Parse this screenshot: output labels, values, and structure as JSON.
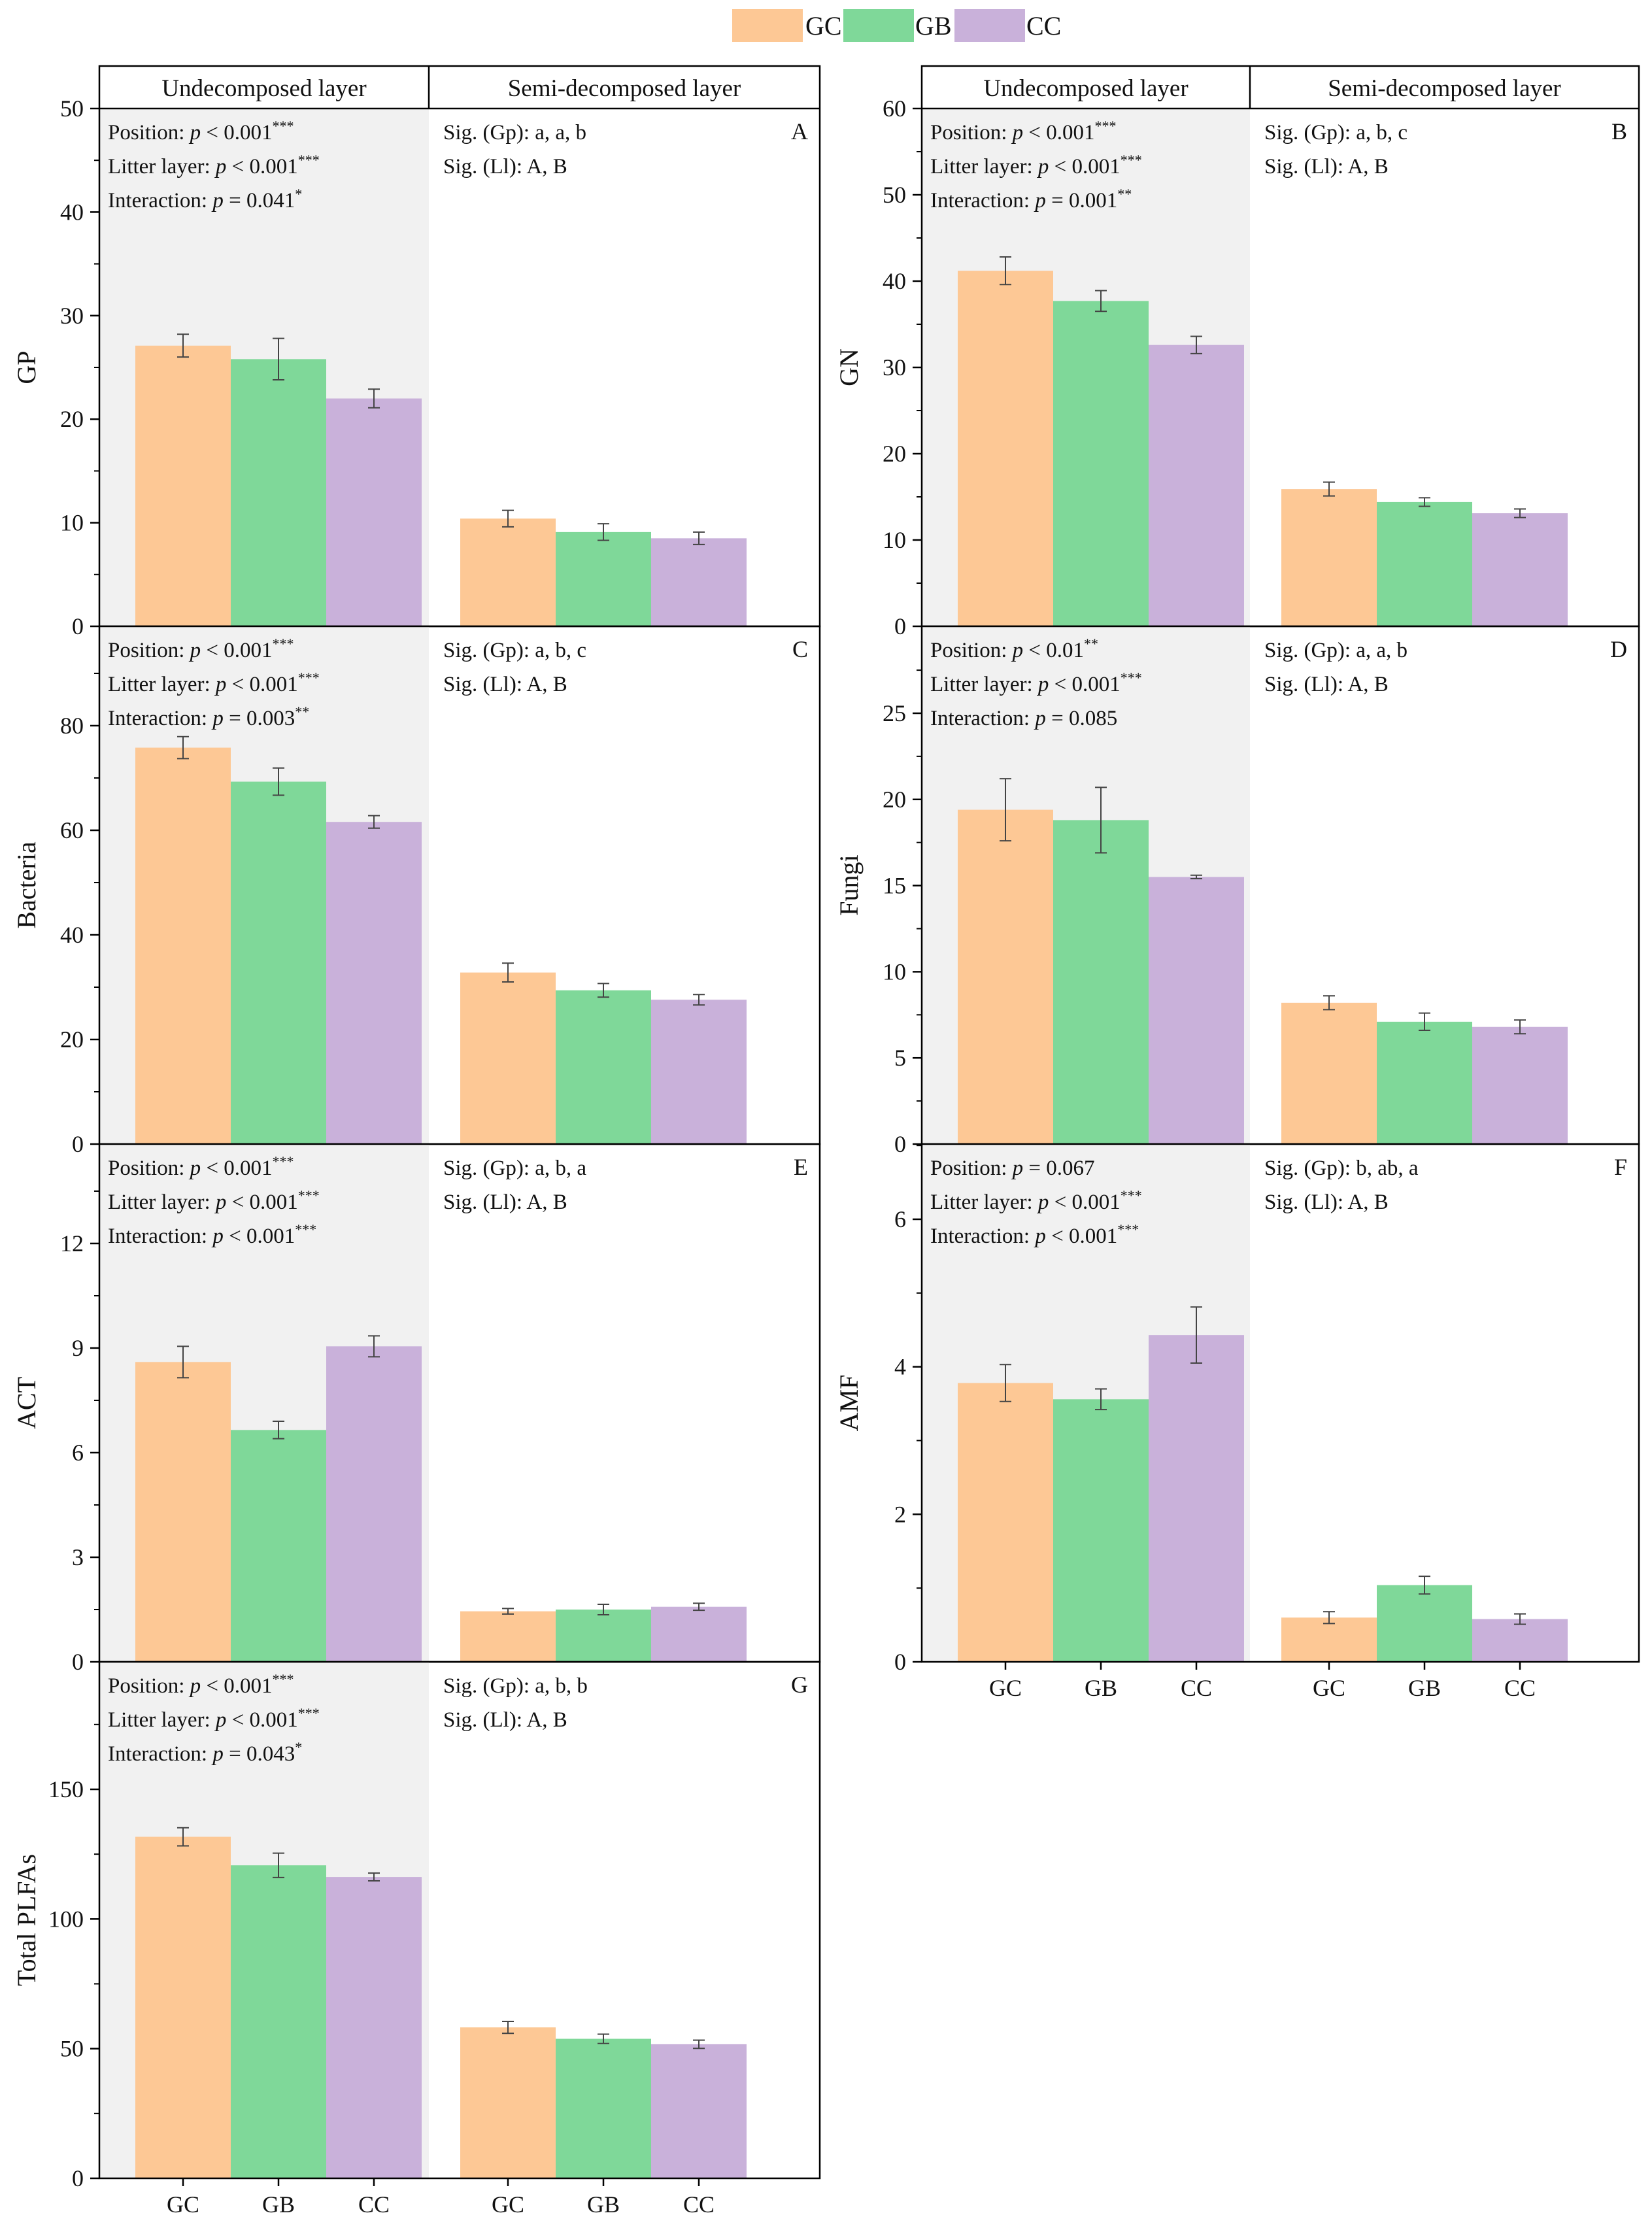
{
  "legend": [
    {
      "label": "GC",
      "color": "#fdc895"
    },
    {
      "label": "GB",
      "color": "#7fd899"
    },
    {
      "label": "CC",
      "color": "#c9b1da"
    }
  ],
  "headers": {
    "left": "Undecomposed layer",
    "right": "Semi-decomposed layer"
  },
  "x_category_labels": [
    "GC",
    "GB",
    "CC"
  ],
  "colors": {
    "shade": "#f1f1f1",
    "axis": "#000000",
    "error_bar": "#444444"
  },
  "chart_data": [
    {
      "id": "A",
      "type": "bar",
      "ylabel": "GP",
      "ylim": [
        0,
        50
      ],
      "yticks": [
        0,
        10,
        20,
        30,
        40,
        50
      ],
      "minor_ticks": true,
      "groups": [
        "Undecomposed layer",
        "Semi-decomposed layer"
      ],
      "categories": [
        "GC",
        "GB",
        "CC"
      ],
      "series": [
        {
          "name": "Undecomposed layer",
          "values": [
            27.1,
            25.8,
            22.0
          ],
          "errors": [
            1.1,
            2.0,
            0.9
          ]
        },
        {
          "name": "Semi-decomposed layer",
          "values": [
            10.4,
            9.1,
            8.5
          ],
          "errors": [
            0.8,
            0.8,
            0.6
          ]
        }
      ],
      "stats": [
        {
          "label": "Position: ",
          "p": "p",
          "rel": " < 0.001",
          "sup": "***"
        },
        {
          "label": "Litter layer: ",
          "p": "p",
          "rel": " < 0.001",
          "sup": "***"
        },
        {
          "label": "Interaction: ",
          "p": "p",
          "rel": " = 0.041",
          "sup": "*"
        }
      ],
      "sig": [
        "Sig. (Gp): a, a, b",
        "Sig. (Ll): A, B"
      ],
      "show_header": true,
      "show_xticks": false
    },
    {
      "id": "B",
      "type": "bar",
      "ylabel": "GN",
      "ylim": [
        0,
        60
      ],
      "yticks": [
        0,
        10,
        20,
        30,
        40,
        50,
        60
      ],
      "minor_ticks": true,
      "groups": [
        "Undecomposed layer",
        "Semi-decomposed layer"
      ],
      "categories": [
        "GC",
        "GB",
        "CC"
      ],
      "series": [
        {
          "name": "Undecomposed layer",
          "values": [
            41.2,
            37.7,
            32.6
          ],
          "errors": [
            1.6,
            1.2,
            1.0
          ]
        },
        {
          "name": "Semi-decomposed layer",
          "values": [
            15.9,
            14.4,
            13.1
          ],
          "errors": [
            0.8,
            0.5,
            0.5
          ]
        }
      ],
      "stats": [
        {
          "label": "Position: ",
          "p": "p",
          "rel": " < 0.001",
          "sup": "***"
        },
        {
          "label": "Litter layer: ",
          "p": "p",
          "rel": " < 0.001",
          "sup": "***"
        },
        {
          "label": "Interaction: ",
          "p": "p",
          "rel": " = 0.001",
          "sup": "**"
        }
      ],
      "sig": [
        "Sig. (Gp): a, b, c",
        "Sig. (Ll): A, B"
      ],
      "show_header": true,
      "show_xticks": false
    },
    {
      "id": "C",
      "type": "bar",
      "ylabel": "Bacteria",
      "ylim": [
        0,
        100
      ],
      "yticks": [
        0,
        20,
        40,
        60,
        80
      ],
      "minor_ticks": true,
      "groups": [
        "Undecomposed layer",
        "Semi-decomposed layer"
      ],
      "categories": [
        "GC",
        "GB",
        "CC"
      ],
      "series": [
        {
          "name": "Undecomposed layer",
          "values": [
            75.8,
            69.3,
            61.6
          ],
          "errors": [
            2.1,
            2.6,
            1.2
          ]
        },
        {
          "name": "Semi-decomposed layer",
          "values": [
            32.8,
            29.4,
            27.6
          ],
          "errors": [
            1.8,
            1.3,
            1.0
          ]
        }
      ],
      "stats": [
        {
          "label": "Position: ",
          "p": "p",
          "rel": " < 0.001",
          "sup": "***"
        },
        {
          "label": "Litter layer: ",
          "p": "p",
          "rel": " < 0.001",
          "sup": "***"
        },
        {
          "label": "Interaction: ",
          "p": "p",
          "rel": " = 0.003",
          "sup": "**"
        }
      ],
      "sig": [
        "Sig. (Gp): a, b, c",
        "Sig. (Ll): A, B"
      ],
      "show_header": false,
      "show_xticks": false
    },
    {
      "id": "D",
      "type": "bar",
      "ylabel": "Fungi",
      "ylim": [
        0,
        30
      ],
      "yticks": [
        0,
        5,
        10,
        15,
        20,
        25
      ],
      "minor_ticks": true,
      "groups": [
        "Undecomposed layer",
        "Semi-decomposed layer"
      ],
      "categories": [
        "GC",
        "GB",
        "CC"
      ],
      "series": [
        {
          "name": "Undecomposed layer",
          "values": [
            19.4,
            18.8,
            15.5
          ],
          "errors": [
            1.8,
            1.9,
            0.1
          ]
        },
        {
          "name": "Semi-decomposed layer",
          "values": [
            8.2,
            7.1,
            6.8
          ],
          "errors": [
            0.4,
            0.5,
            0.4
          ]
        }
      ],
      "stats": [
        {
          "label": "Position: ",
          "p": "p",
          "rel": " < 0.01",
          "sup": "**"
        },
        {
          "label": "Litter layer: ",
          "p": "p",
          "rel": " < 0.001",
          "sup": "***"
        },
        {
          "label": "Interaction: ",
          "p": "p",
          "rel": " = 0.085",
          "sup": ""
        }
      ],
      "sig": [
        "Sig. (Gp): a, a, b",
        "Sig. (Ll): A, B"
      ],
      "show_header": false,
      "show_xticks": false
    },
    {
      "id": "E",
      "type": "bar",
      "ylabel": "ACT",
      "ylim": [
        0,
        15
      ],
      "yticks": [
        0,
        3,
        6,
        9,
        12
      ],
      "minor_ticks": true,
      "groups": [
        "Undecomposed layer",
        "Semi-decomposed layer"
      ],
      "categories": [
        "GC",
        "GB",
        "CC"
      ],
      "series": [
        {
          "name": "Undecomposed layer",
          "values": [
            8.6,
            6.65,
            9.05
          ],
          "errors": [
            0.45,
            0.25,
            0.3
          ]
        },
        {
          "name": "Semi-decomposed layer",
          "values": [
            1.45,
            1.5,
            1.58
          ],
          "errors": [
            0.08,
            0.15,
            0.1
          ]
        }
      ],
      "stats": [
        {
          "label": "Position: ",
          "p": "p",
          "rel": " < 0.001",
          "sup": "***"
        },
        {
          "label": "Litter layer: ",
          "p": "p",
          "rel": " < 0.001",
          "sup": "***"
        },
        {
          "label": "Interaction: ",
          "p": "p",
          "rel": " < 0.001",
          "sup": "***"
        }
      ],
      "sig": [
        "Sig. (Gp): a, b, a",
        "Sig. (Ll): A, B"
      ],
      "show_header": false,
      "show_xticks": false
    },
    {
      "id": "F",
      "type": "bar",
      "ylabel": "AMF",
      "ylim": [
        0,
        7
      ],
      "yticks": [
        0,
        2,
        4,
        6
      ],
      "minor_ticks": true,
      "groups": [
        "Undecomposed layer",
        "Semi-decomposed layer"
      ],
      "categories": [
        "GC",
        "GB",
        "CC"
      ],
      "series": [
        {
          "name": "Undecomposed layer",
          "values": [
            3.78,
            3.56,
            4.43
          ],
          "errors": [
            0.25,
            0.14,
            0.38
          ]
        },
        {
          "name": "Semi-decomposed layer",
          "values": [
            0.6,
            1.04,
            0.58
          ],
          "errors": [
            0.08,
            0.12,
            0.07
          ]
        }
      ],
      "stats": [
        {
          "label": "Position: ",
          "p": "p",
          "rel": " = 0.067",
          "sup": ""
        },
        {
          "label": "Litter layer: ",
          "p": "p",
          "rel": " < 0.001",
          "sup": "***"
        },
        {
          "label": "Interaction: ",
          "p": "p",
          "rel": " < 0.001",
          "sup": "***"
        }
      ],
      "sig": [
        "Sig. (Gp): b, ab, a",
        "Sig. (Ll): A, B"
      ],
      "show_header": false,
      "show_xticks": true
    },
    {
      "id": "G",
      "type": "bar",
      "ylabel": "Total PLFAs",
      "ylim": [
        0,
        200
      ],
      "yticks": [
        0,
        50,
        100,
        150
      ],
      "minor_ticks": true,
      "groups": [
        "Undecomposed layer",
        "Semi-decomposed layer"
      ],
      "categories": [
        "GC",
        "GB",
        "CC"
      ],
      "series": [
        {
          "name": "Undecomposed layer",
          "values": [
            131.7,
            120.7,
            116.2
          ],
          "errors": [
            3.5,
            4.7,
            1.5
          ]
        },
        {
          "name": "Semi-decomposed layer",
          "values": [
            58.2,
            53.8,
            51.7
          ],
          "errors": [
            2.3,
            1.8,
            1.6
          ]
        }
      ],
      "stats": [
        {
          "label": "Position: ",
          "p": "p",
          "rel": " < 0.001",
          "sup": "***"
        },
        {
          "label": "Litter layer: ",
          "p": "p",
          "rel": " < 0.001",
          "sup": "***"
        },
        {
          "label": "Interaction: ",
          "p": "p",
          "rel": " = 0.043",
          "sup": "*"
        }
      ],
      "sig": [
        "Sig. (Gp): a, b, b",
        "Sig. (Ll): A, B"
      ],
      "show_header": false,
      "show_xticks": true
    }
  ]
}
